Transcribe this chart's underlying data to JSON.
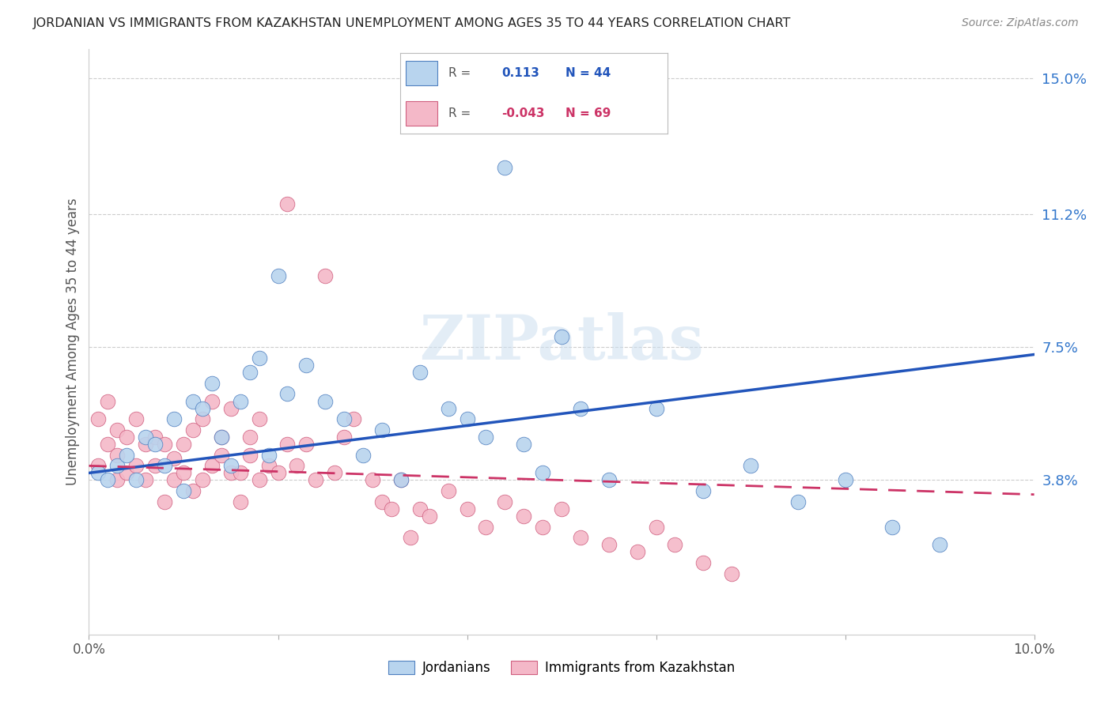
{
  "title": "JORDANIAN VS IMMIGRANTS FROM KAZAKHSTAN UNEMPLOYMENT AMONG AGES 35 TO 44 YEARS CORRELATION CHART",
  "source": "Source: ZipAtlas.com",
  "ylabel": "Unemployment Among Ages 35 to 44 years",
  "xlim": [
    0.0,
    0.1
  ],
  "ylim": [
    -0.005,
    0.158
  ],
  "yticks_right": [
    0.038,
    0.075,
    0.112,
    0.15
  ],
  "yticklabels_right": [
    "3.8%",
    "7.5%",
    "11.2%",
    "15.0%"
  ],
  "blue_R": 0.113,
  "blue_N": 44,
  "pink_R": -0.043,
  "pink_N": 69,
  "legend_label_blue": "Jordanians",
  "legend_label_pink": "Immigrants from Kazakhstan",
  "blue_color": "#b8d4ee",
  "blue_edge_color": "#5080c0",
  "blue_line_color": "#2255bb",
  "pink_color": "#f4b8c8",
  "pink_edge_color": "#d06080",
  "pink_line_color": "#cc3366",
  "watermark": "ZIPatlas",
  "blue_x": [
    0.001,
    0.002,
    0.003,
    0.004,
    0.005,
    0.006,
    0.007,
    0.008,
    0.009,
    0.01,
    0.011,
    0.012,
    0.013,
    0.014,
    0.015,
    0.016,
    0.017,
    0.018,
    0.019,
    0.02,
    0.021,
    0.023,
    0.025,
    0.027,
    0.029,
    0.031,
    0.033,
    0.035,
    0.038,
    0.04,
    0.042,
    0.044,
    0.046,
    0.048,
    0.05,
    0.052,
    0.055,
    0.06,
    0.065,
    0.07,
    0.075,
    0.08,
    0.085,
    0.09
  ],
  "blue_y": [
    0.04,
    0.038,
    0.042,
    0.045,
    0.038,
    0.05,
    0.048,
    0.042,
    0.055,
    0.035,
    0.06,
    0.058,
    0.065,
    0.05,
    0.042,
    0.06,
    0.068,
    0.072,
    0.045,
    0.095,
    0.062,
    0.07,
    0.06,
    0.055,
    0.045,
    0.052,
    0.038,
    0.068,
    0.058,
    0.055,
    0.05,
    0.125,
    0.048,
    0.04,
    0.078,
    0.058,
    0.038,
    0.058,
    0.035,
    0.042,
    0.032,
    0.038,
    0.025,
    0.02
  ],
  "pink_x": [
    0.001,
    0.001,
    0.002,
    0.002,
    0.003,
    0.003,
    0.003,
    0.004,
    0.004,
    0.005,
    0.005,
    0.006,
    0.006,
    0.007,
    0.007,
    0.008,
    0.008,
    0.009,
    0.009,
    0.01,
    0.01,
    0.011,
    0.011,
    0.012,
    0.012,
    0.013,
    0.013,
    0.014,
    0.014,
    0.015,
    0.015,
    0.016,
    0.016,
    0.017,
    0.017,
    0.018,
    0.018,
    0.019,
    0.02,
    0.021,
    0.021,
    0.022,
    0.023,
    0.024,
    0.025,
    0.026,
    0.027,
    0.028,
    0.03,
    0.031,
    0.032,
    0.033,
    0.034,
    0.035,
    0.036,
    0.038,
    0.04,
    0.042,
    0.044,
    0.046,
    0.048,
    0.05,
    0.052,
    0.055,
    0.058,
    0.06,
    0.062,
    0.065,
    0.068
  ],
  "pink_y": [
    0.055,
    0.042,
    0.048,
    0.06,
    0.038,
    0.045,
    0.052,
    0.04,
    0.05,
    0.042,
    0.055,
    0.038,
    0.048,
    0.042,
    0.05,
    0.032,
    0.048,
    0.038,
    0.044,
    0.04,
    0.048,
    0.035,
    0.052,
    0.038,
    0.055,
    0.042,
    0.06,
    0.045,
    0.05,
    0.04,
    0.058,
    0.032,
    0.04,
    0.045,
    0.05,
    0.055,
    0.038,
    0.042,
    0.04,
    0.048,
    0.115,
    0.042,
    0.048,
    0.038,
    0.095,
    0.04,
    0.05,
    0.055,
    0.038,
    0.032,
    0.03,
    0.038,
    0.022,
    0.03,
    0.028,
    0.035,
    0.03,
    0.025,
    0.032,
    0.028,
    0.025,
    0.03,
    0.022,
    0.02,
    0.018,
    0.025,
    0.02,
    0.015,
    0.012
  ],
  "blue_trend_x0": 0.0,
  "blue_trend_y0": 0.04,
  "blue_trend_x1": 0.1,
  "blue_trend_y1": 0.073,
  "pink_trend_x0": 0.0,
  "pink_trend_y0": 0.042,
  "pink_trend_x1": 0.1,
  "pink_trend_y1": 0.034
}
